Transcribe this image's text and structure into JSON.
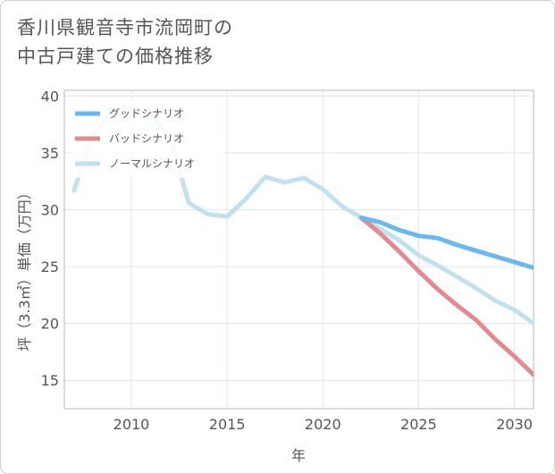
{
  "title_lines": [
    "香川県観音寺市流岡町の",
    "中古戸建ての価格推移"
  ],
  "chart_data": {
    "type": "line",
    "xlabel": "年",
    "ylabel": "坪（3.3㎡）単価（万円）",
    "xlim": [
      2006.5,
      2031
    ],
    "ylim": [
      12.5,
      40.5
    ],
    "x_ticks": [
      2010,
      2015,
      2020,
      2025,
      2030
    ],
    "y_ticks": [
      15,
      20,
      25,
      30,
      35,
      40
    ],
    "grid": true,
    "legend_position": "top-left",
    "series": [
      {
        "name": "グッドシナリオ",
        "color": "#6cb8ec",
        "x": [
          2022,
          2023,
          2024,
          2025,
          2026,
          2027,
          2028,
          2029,
          2030,
          2031
        ],
        "y": [
          29.3,
          28.9,
          28.2,
          27.7,
          27.5,
          26.9,
          26.4,
          25.9,
          25.4,
          24.9
        ]
      },
      {
        "name": "バッドシナリオ",
        "color": "#e08a92",
        "x": [
          2022,
          2023,
          2024,
          2025,
          2026,
          2027,
          2028,
          2029,
          2030,
          2031
        ],
        "y": [
          29.3,
          27.9,
          26.3,
          24.6,
          23.0,
          21.6,
          20.3,
          18.6,
          17.1,
          15.5
        ]
      },
      {
        "name": "ノーマルシナリオ",
        "color": "#c3e0ee",
        "x": [
          2007,
          2008,
          2009,
          2010,
          2011,
          2012,
          2013,
          2014,
          2015,
          2016,
          2017,
          2018,
          2019,
          2020,
          2021,
          2022,
          2023,
          2024,
          2025,
          2026,
          2027,
          2028,
          2029,
          2030,
          2031
        ],
        "y": [
          31.7,
          36.5,
          38.7,
          39.0,
          38.5,
          36.4,
          30.6,
          29.6,
          29.4,
          31.0,
          32.9,
          32.4,
          32.8,
          31.8,
          30.3,
          29.3,
          28.3,
          27.3,
          26.0,
          25.1,
          24.1,
          23.1,
          22.0,
          21.2,
          20.0
        ]
      }
    ]
  }
}
